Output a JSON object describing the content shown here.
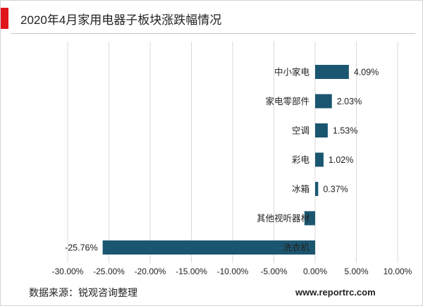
{
  "colors": {
    "accent": "#e0151b",
    "bar": "#1b5670",
    "grid": "#d9d9d9"
  },
  "chart_data": {
    "type": "bar",
    "orientation": "horizontal",
    "title": "2020年4月家用电器子板块涨跌幅情况",
    "xlabel": "",
    "ylabel": "",
    "categories": [
      "中小家电",
      "家电零部件",
      "空调",
      "彩电",
      "冰箱",
      "其他视听器材",
      "洗衣机"
    ],
    "values": [
      4.09,
      2.03,
      1.53,
      1.02,
      0.37,
      -1.3,
      -25.76
    ],
    "data_labels": [
      "4.09%",
      "2.03%",
      "1.53%",
      "1.02%",
      "0.37%",
      "",
      "-25.76%"
    ],
    "xlim": [
      -30,
      10
    ],
    "x_ticks": [
      -30,
      -25,
      -20,
      -15,
      -10,
      -5,
      0,
      5,
      10
    ],
    "x_tick_labels": [
      "-30.00%",
      "-25.00%",
      "-20.00%",
      "-15.00%",
      "-10.00%",
      "-5.00%",
      "0.00%",
      "5.00%",
      "10.00%"
    ],
    "grid": "vertical",
    "legend": "none"
  },
  "footer": {
    "source": "数据来源：锐观咨询整理",
    "site": "www.reportrc.com"
  }
}
